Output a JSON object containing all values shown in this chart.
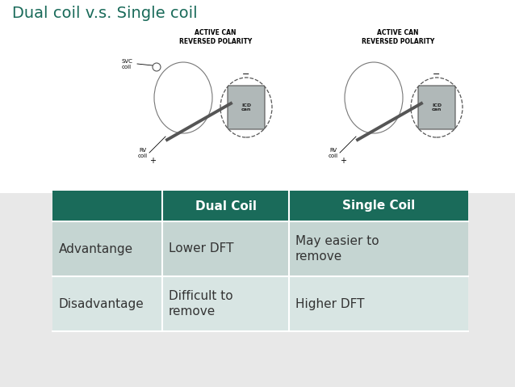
{
  "title": "Dual coil v.s. Single coil",
  "title_color": "#1a6b5a",
  "title_fontsize": 14,
  "bg_color": "#e8e8e8",
  "top_bg_color": "#ffffff",
  "header_row": [
    "",
    "Dual Coil",
    "Single Coil"
  ],
  "header_bg": "#1a6b5a",
  "header_text_color": "#ffffff",
  "header_fontsize": 11,
  "rows": [
    [
      "Advantange",
      "Lower DFT",
      "May easier to\nremove"
    ],
    [
      "Disadvantage",
      "Difficult to\nremove",
      "Higher DFT"
    ]
  ],
  "row_bg1": "#c5d5d2",
  "row_bg2": "#d8e5e3",
  "row_text_color": "#333333",
  "row_fontsize": 11,
  "diag_label_fontsize": 5.5,
  "small_label_fontsize": 5
}
